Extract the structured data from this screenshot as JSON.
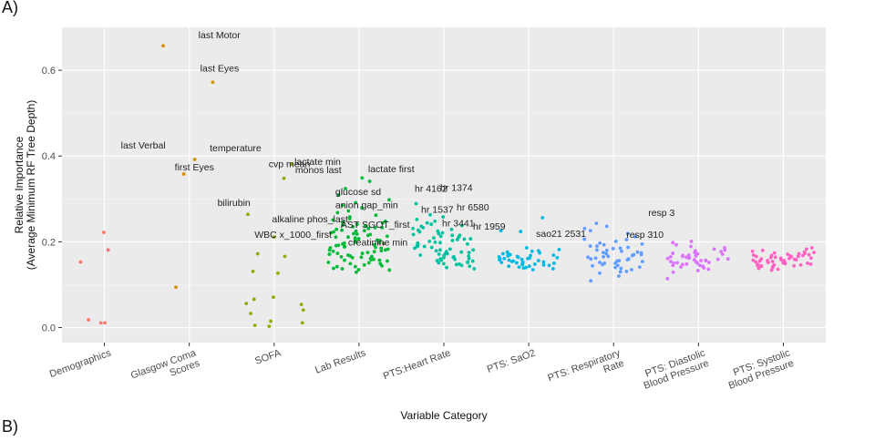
{
  "panel_labels": {
    "top": "A)",
    "bottom": "B)"
  },
  "chart_data": {
    "type": "scatter",
    "xlabel": "Variable Category",
    "ylabel_line1": "Relative Importance",
    "ylabel_line2": "(Average Minimum RF Tree Depth)",
    "ylim": [
      -0.035,
      0.7
    ],
    "yticks": [
      0.0,
      0.2,
      0.4,
      0.6
    ],
    "ytick_labels": [
      "0.0",
      "0.2",
      "0.4",
      "0.6"
    ],
    "grid": true,
    "categories": [
      "Demographics",
      "Glasgow Coma Scores",
      "SOFA",
      "Lab Results",
      "PTS:Heart Rate",
      "PTS: SaO2",
      "PTS: Respiratory Rate",
      "PTS: Diastolic Blood Pressure",
      "PTS: Systolic Blood Pressure"
    ],
    "category_label_lines": [
      [
        "Demographics"
      ],
      [
        "Glasgow Coma",
        "Scores"
      ],
      [
        "SOFA"
      ],
      [
        "Lab Results"
      ],
      [
        "PTS:Heart Rate"
      ],
      [
        "PTS: SaO2"
      ],
      [
        "PTS: Respiratory",
        "Rate"
      ],
      [
        "PTS: Diastolic",
        "Blood Pressure"
      ],
      [
        "PTS: Systolic",
        "Blood Pressure"
      ]
    ],
    "colors": [
      "#F8766D",
      "#D39200",
      "#93AA00",
      "#00BA38",
      "#00C19F",
      "#00B9E3",
      "#619CFF",
      "#DB72FB",
      "#FF61C3"
    ],
    "series": [
      {
        "values": [
          0.222,
          0.181,
          0.153,
          0.018,
          0.011,
          0.011
        ]
      },
      {
        "values": [
          0.657,
          0.572,
          0.392,
          0.358,
          0.094
        ]
      },
      {
        "values": [
          0.381,
          0.348,
          0.264,
          0.211,
          0.172,
          0.166,
          0.131,
          0.127,
          0.071,
          0.066,
          0.056,
          0.054,
          0.041,
          0.033,
          0.015,
          0.011,
          0.005,
          0.003
        ]
      },
      {
        "values": [
          0.349,
          0.341,
          0.324,
          0.309,
          0.298,
          0.291,
          0.285,
          0.279,
          0.272,
          0.268,
          0.262,
          0.258,
          0.254,
          0.251,
          0.248,
          0.246,
          0.244,
          0.241,
          0.239,
          0.237,
          0.235,
          0.233,
          0.231,
          0.229,
          0.227,
          0.225,
          0.223,
          0.221,
          0.219,
          0.217,
          0.215,
          0.213,
          0.211,
          0.209,
          0.207,
          0.205,
          0.203,
          0.201,
          0.199,
          0.197,
          0.195,
          0.193,
          0.191,
          0.189,
          0.187,
          0.185,
          0.183,
          0.181,
          0.179,
          0.177,
          0.175,
          0.173,
          0.171,
          0.169,
          0.167,
          0.165,
          0.163,
          0.161,
          0.159,
          0.157,
          0.155,
          0.152,
          0.149,
          0.146,
          0.142,
          0.138,
          0.134,
          0.129,
          0.233,
          0.226,
          0.218,
          0.211,
          0.204,
          0.196,
          0.188,
          0.181,
          0.173,
          0.166,
          0.158,
          0.151,
          0.144,
          0.137,
          0.198,
          0.192,
          0.186,
          0.178,
          0.171,
          0.164,
          0.157,
          0.149,
          0.142,
          0.135
        ]
      },
      {
        "values": [
          0.289,
          0.263,
          0.258,
          0.252,
          0.248,
          0.244,
          0.241,
          0.238,
          0.236,
          0.233,
          0.231,
          0.229,
          0.227,
          0.225,
          0.223,
          0.221,
          0.219,
          0.217,
          0.215,
          0.213,
          0.211,
          0.209,
          0.207,
          0.205,
          0.203,
          0.201,
          0.199,
          0.197,
          0.195,
          0.193,
          0.191,
          0.189,
          0.187,
          0.185,
          0.183,
          0.181,
          0.179,
          0.177,
          0.175,
          0.173,
          0.171,
          0.169,
          0.167,
          0.165,
          0.163,
          0.161,
          0.159,
          0.157,
          0.155,
          0.153,
          0.151,
          0.149,
          0.147,
          0.145,
          0.143,
          0.14,
          0.137,
          0.215,
          0.206,
          0.198,
          0.189,
          0.181,
          0.172,
          0.164,
          0.156,
          0.148,
          0.176,
          0.168,
          0.16,
          0.152
        ]
      },
      {
        "values": [
          0.256,
          0.226,
          0.224,
          0.186,
          0.182,
          0.179,
          0.176,
          0.174,
          0.172,
          0.17,
          0.168,
          0.166,
          0.165,
          0.163,
          0.162,
          0.16,
          0.159,
          0.157,
          0.156,
          0.154,
          0.153,
          0.151,
          0.15,
          0.148,
          0.147,
          0.145,
          0.143,
          0.141,
          0.139,
          0.137,
          0.135,
          0.172,
          0.167,
          0.161,
          0.155,
          0.149,
          0.143,
          0.164,
          0.158,
          0.152,
          0.146,
          0.14,
          0.178,
          0.169,
          0.161,
          0.153
        ]
      },
      {
        "values": [
          0.243,
          0.236,
          0.231,
          0.226,
          0.219,
          0.212,
          0.206,
          0.201,
          0.197,
          0.193,
          0.19,
          0.187,
          0.184,
          0.181,
          0.178,
          0.176,
          0.174,
          0.172,
          0.17,
          0.168,
          0.166,
          0.164,
          0.162,
          0.16,
          0.158,
          0.156,
          0.154,
          0.152,
          0.15,
          0.147,
          0.144,
          0.141,
          0.138,
          0.135,
          0.131,
          0.127,
          0.12,
          0.109,
          0.205,
          0.195,
          0.185,
          0.175,
          0.165,
          0.155,
          0.145,
          0.19,
          0.18,
          0.17,
          0.16,
          0.15,
          0.14,
          0.13
        ]
      },
      {
        "values": [
          0.201,
          0.198,
          0.193,
          0.189,
          0.186,
          0.183,
          0.181,
          0.179,
          0.177,
          0.175,
          0.173,
          0.171,
          0.169,
          0.168,
          0.166,
          0.165,
          0.163,
          0.162,
          0.16,
          0.159,
          0.157,
          0.156,
          0.154,
          0.153,
          0.151,
          0.15,
          0.148,
          0.147,
          0.145,
          0.143,
          0.141,
          0.139,
          0.136,
          0.133,
          0.129,
          0.114,
          0.172,
          0.167,
          0.161,
          0.156,
          0.15,
          0.145,
          0.164,
          0.158,
          0.152
        ]
      },
      {
        "values": [
          0.186,
          0.183,
          0.18,
          0.178,
          0.176,
          0.175,
          0.173,
          0.172,
          0.171,
          0.17,
          0.169,
          0.168,
          0.167,
          0.166,
          0.165,
          0.164,
          0.163,
          0.162,
          0.161,
          0.16,
          0.159,
          0.158,
          0.157,
          0.156,
          0.155,
          0.154,
          0.153,
          0.152,
          0.151,
          0.15,
          0.149,
          0.148,
          0.147,
          0.146,
          0.145,
          0.144,
          0.143,
          0.142,
          0.141,
          0.14,
          0.138,
          0.136,
          0.134,
          0.168,
          0.162,
          0.156,
          0.15,
          0.144,
          0.174,
          0.166,
          0.158,
          0.152,
          0.146
        ]
      }
    ],
    "annotations": [
      {
        "text": "last Motor",
        "category": 1,
        "value": 0.657
      },
      {
        "text": "last Eyes",
        "category": 1,
        "value": 0.572
      },
      {
        "text": "last Verbal",
        "category": 1,
        "value": 0.392
      },
      {
        "text": "first Eyes",
        "category": 1,
        "value": 0.358
      },
      {
        "text": "temperature",
        "category": 2,
        "value": 0.381
      },
      {
        "text": "cvp mean",
        "category": 2,
        "value": 0.348
      },
      {
        "text": "monos last",
        "category": 3,
        "value": 0.324
      },
      {
        "text": "bilirubin",
        "category": 2,
        "value": 0.264
      },
      {
        "text": "alkaline phos_last",
        "category": 3,
        "value": 0.233
      },
      {
        "text": "WBC x_1000_first",
        "category": 3,
        "value": 0.218
      },
      {
        "text": "lactate min",
        "category": 3,
        "value": 0.349
      },
      {
        "text": "lactate first",
        "category": 3,
        "value": 0.341
      },
      {
        "text": "glucose sd",
        "category": 3,
        "value": 0.279
      },
      {
        "text": "anion gap_min",
        "category": 3,
        "value": 0.268
      },
      {
        "text": "AST SGOT_first",
        "category": 3,
        "value": 0.226
      },
      {
        "text": "creatinine min",
        "category": 3,
        "value": 0.204
      },
      {
        "text": "hr 4162",
        "category": 4,
        "value": 0.263
      },
      {
        "text": "hr 1374",
        "category": 4,
        "value": 0.289
      },
      {
        "text": "hr 1537",
        "category": 4,
        "value": 0.244
      },
      {
        "text": "hr 6580",
        "category": 4,
        "value": 0.252
      },
      {
        "text": "hr 1959",
        "category": 4,
        "value": 0.241
      },
      {
        "text": "hr 3441",
        "category": 4,
        "value": 0.221
      },
      {
        "text": "sao21 2531",
        "category": 5,
        "value": 0.226
      },
      {
        "text": "resp 3",
        "category": 6,
        "value": 0.243
      },
      {
        "text": "resp 310",
        "category": 6,
        "value": 0.231
      }
    ]
  }
}
